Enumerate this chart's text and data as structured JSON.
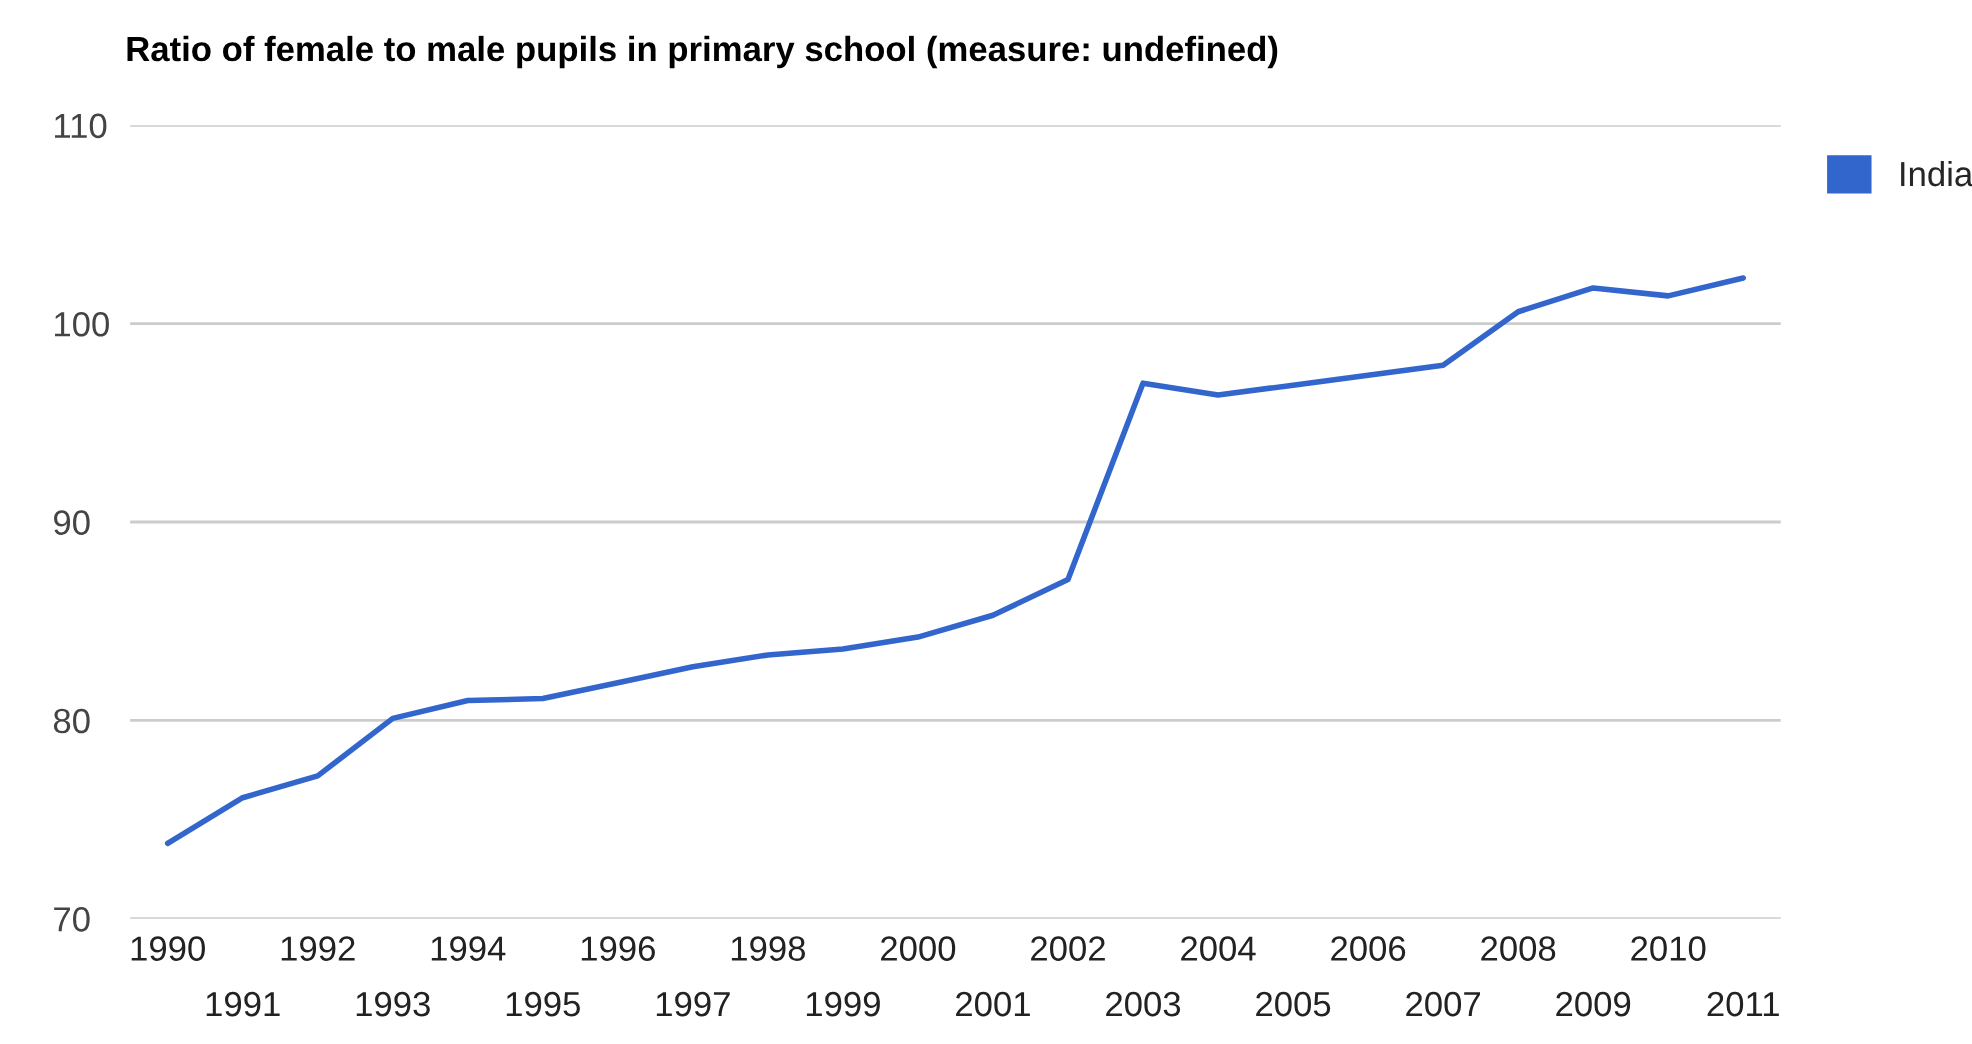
{
  "chart_data": {
    "type": "line",
    "title": "Ratio of female to male pupils in primary school (measure: undefined)",
    "categories": [
      "1990",
      "1991",
      "1992",
      "1993",
      "1994",
      "1995",
      "1996",
      "1997",
      "1998",
      "1999",
      "2000",
      "2001",
      "2002",
      "2003",
      "2004",
      "2005",
      "2006",
      "2007",
      "2008",
      "2009",
      "2010",
      "2011"
    ],
    "series": [
      {
        "name": "India",
        "color": "#3366cc",
        "values": [
          73.8,
          76.1,
          77.2,
          80.1,
          81.0,
          81.1,
          81.9,
          82.7,
          83.3,
          83.6,
          84.2,
          85.3,
          87.1,
          97.0,
          96.4,
          96.9,
          97.4,
          97.9,
          100.6,
          101.8,
          101.4,
          102.3
        ]
      }
    ],
    "ylim": [
      70,
      110
    ],
    "yticks": [
      70,
      80,
      90,
      100,
      110
    ],
    "grid": "y",
    "legend": "right",
    "marker": "none",
    "line_style": "solid"
  }
}
